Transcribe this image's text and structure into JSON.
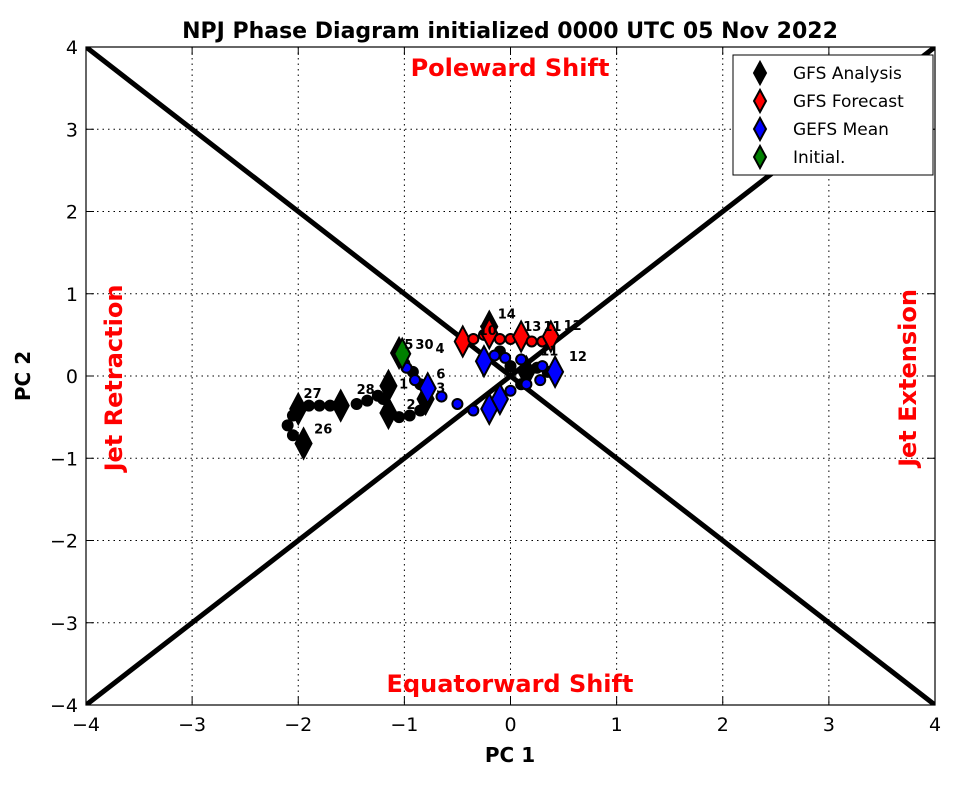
{
  "chart_data": {
    "type": "scatter",
    "title": "NPJ Phase Diagram initialized 0000 UTC 05 Nov 2022",
    "xlabel": "PC 1",
    "ylabel": "PC 2",
    "xlim": [
      -4,
      4
    ],
    "ylim": [
      -4,
      4
    ],
    "xticks": [
      "−4",
      "−3",
      "−2",
      "−1",
      "0",
      "1",
      "2",
      "3",
      "4"
    ],
    "yticks": [
      "−4",
      "−3",
      "−2",
      "−1",
      "0",
      "1",
      "2",
      "3",
      "4"
    ],
    "grid": true,
    "legend_placement": "top-right",
    "regions": {
      "top": "Poleward Shift",
      "bottom": "Equatorward Shift",
      "left": "Jet Retraction",
      "right": "Jet Extension"
    },
    "series": [
      {
        "name": "GFS Analysis",
        "color": "#000000",
        "points": [
          [
            -1.95,
            -0.82,
            "D"
          ],
          [
            -2.05,
            -0.72,
            "o"
          ],
          [
            -2.1,
            -0.6,
            "o"
          ],
          [
            -2.05,
            -0.48,
            "o"
          ],
          [
            -2.0,
            -0.4,
            "D"
          ],
          [
            -1.9,
            -0.36,
            "o"
          ],
          [
            -1.8,
            -0.36,
            "o"
          ],
          [
            -1.7,
            -0.36,
            "o"
          ],
          [
            -1.6,
            -0.36,
            "D"
          ],
          [
            -1.45,
            -0.34,
            "o"
          ],
          [
            -1.35,
            -0.3,
            "o"
          ],
          [
            -1.25,
            -0.24,
            "o"
          ],
          [
            -1.15,
            -0.12,
            "D"
          ],
          [
            -1.2,
            -0.28,
            "o"
          ],
          [
            -1.15,
            -0.45,
            "D"
          ],
          [
            -1.05,
            -0.5,
            "o"
          ],
          [
            -0.95,
            -0.48,
            "o"
          ],
          [
            -0.85,
            -0.42,
            "o"
          ],
          [
            -0.8,
            -0.28,
            "D"
          ],
          [
            -0.85,
            -0.1,
            "o"
          ],
          [
            -0.92,
            0.05,
            "o"
          ],
          [
            -1.0,
            0.15,
            "o"
          ],
          [
            -1.05,
            0.28,
            "D"
          ],
          [
            -0.2,
            0.6,
            "D"
          ],
          [
            -0.1,
            0.3,
            "o"
          ],
          [
            0.0,
            0.12,
            "o"
          ],
          [
            0.15,
            0.05,
            "D"
          ],
          [
            0.25,
            0.1,
            "o"
          ],
          [
            0.35,
            0.05,
            "o"
          ],
          [
            0.1,
            -0.1,
            "o"
          ]
        ]
      },
      {
        "name": "GFS Forecast",
        "color": "#ff0000",
        "points": [
          [
            -0.45,
            0.42,
            "D"
          ],
          [
            -0.35,
            0.45,
            "o"
          ],
          [
            -0.25,
            0.5,
            "o"
          ],
          [
            -0.2,
            0.52,
            "D"
          ],
          [
            -0.1,
            0.45,
            "o"
          ],
          [
            0.0,
            0.45,
            "o"
          ],
          [
            0.1,
            0.48,
            "D"
          ],
          [
            0.2,
            0.42,
            "o"
          ],
          [
            0.3,
            0.42,
            "o"
          ],
          [
            0.38,
            0.48,
            "D"
          ]
        ]
      },
      {
        "name": "GEFS Mean",
        "color": "#0000ff",
        "points": [
          [
            -1.02,
            0.2,
            "o"
          ],
          [
            -0.98,
            0.1,
            "o"
          ],
          [
            -0.9,
            -0.05,
            "o"
          ],
          [
            -0.78,
            -0.15,
            "D"
          ],
          [
            -0.65,
            -0.25,
            "o"
          ],
          [
            -0.5,
            -0.34,
            "o"
          ],
          [
            -0.35,
            -0.42,
            "o"
          ],
          [
            -0.2,
            -0.4,
            "D"
          ],
          [
            -0.1,
            -0.28,
            "D"
          ],
          [
            0.0,
            -0.18,
            "o"
          ],
          [
            0.15,
            -0.1,
            "o"
          ],
          [
            0.28,
            -0.05,
            "o"
          ],
          [
            0.42,
            0.05,
            "D"
          ],
          [
            -0.25,
            0.18,
            "D"
          ],
          [
            -0.15,
            0.25,
            "o"
          ],
          [
            -0.05,
            0.22,
            "o"
          ],
          [
            0.1,
            0.2,
            "o"
          ],
          [
            0.3,
            0.12,
            "o"
          ]
        ]
      },
      {
        "name": "Initial.",
        "color": "#008000",
        "points": [
          [
            -1.02,
            0.27,
            "D"
          ]
        ]
      }
    ],
    "annotations": [
      {
        "text": "26",
        "x": -1.85,
        "y": -0.7
      },
      {
        "text": "27",
        "x": -1.95,
        "y": -0.27
      },
      {
        "text": "28",
        "x": -1.45,
        "y": -0.22
      },
      {
        "text": "1",
        "x": -1.05,
        "y": -0.15
      },
      {
        "text": "2",
        "x": -0.98,
        "y": -0.4
      },
      {
        "text": "3",
        "x": -0.7,
        "y": -0.2
      },
      {
        "text": "6",
        "x": -0.7,
        "y": -0.03
      },
      {
        "text": "5",
        "x": -1.0,
        "y": 0.33
      },
      {
        "text": "30",
        "x": -0.93,
        "y": 0.33
      },
      {
        "text": "4",
        "x": -0.8,
        "y": 0.28
      },
      {
        "text": "14",
        "x": -0.12,
        "y": 0.7
      },
      {
        "text": "10",
        "x": -0.3,
        "y": 0.5
      },
      {
        "text": "13",
        "x": 0.12,
        "y": 0.55
      },
      {
        "text": "11",
        "x": 0.22,
        "y": 0.55
      },
      {
        "text": "12",
        "x": 0.5,
        "y": 0.56
      },
      {
        "text": "11",
        "x": 0.28,
        "y": 0.25
      },
      {
        "text": "12",
        "x": 0.55,
        "y": 0.18
      }
    ]
  }
}
